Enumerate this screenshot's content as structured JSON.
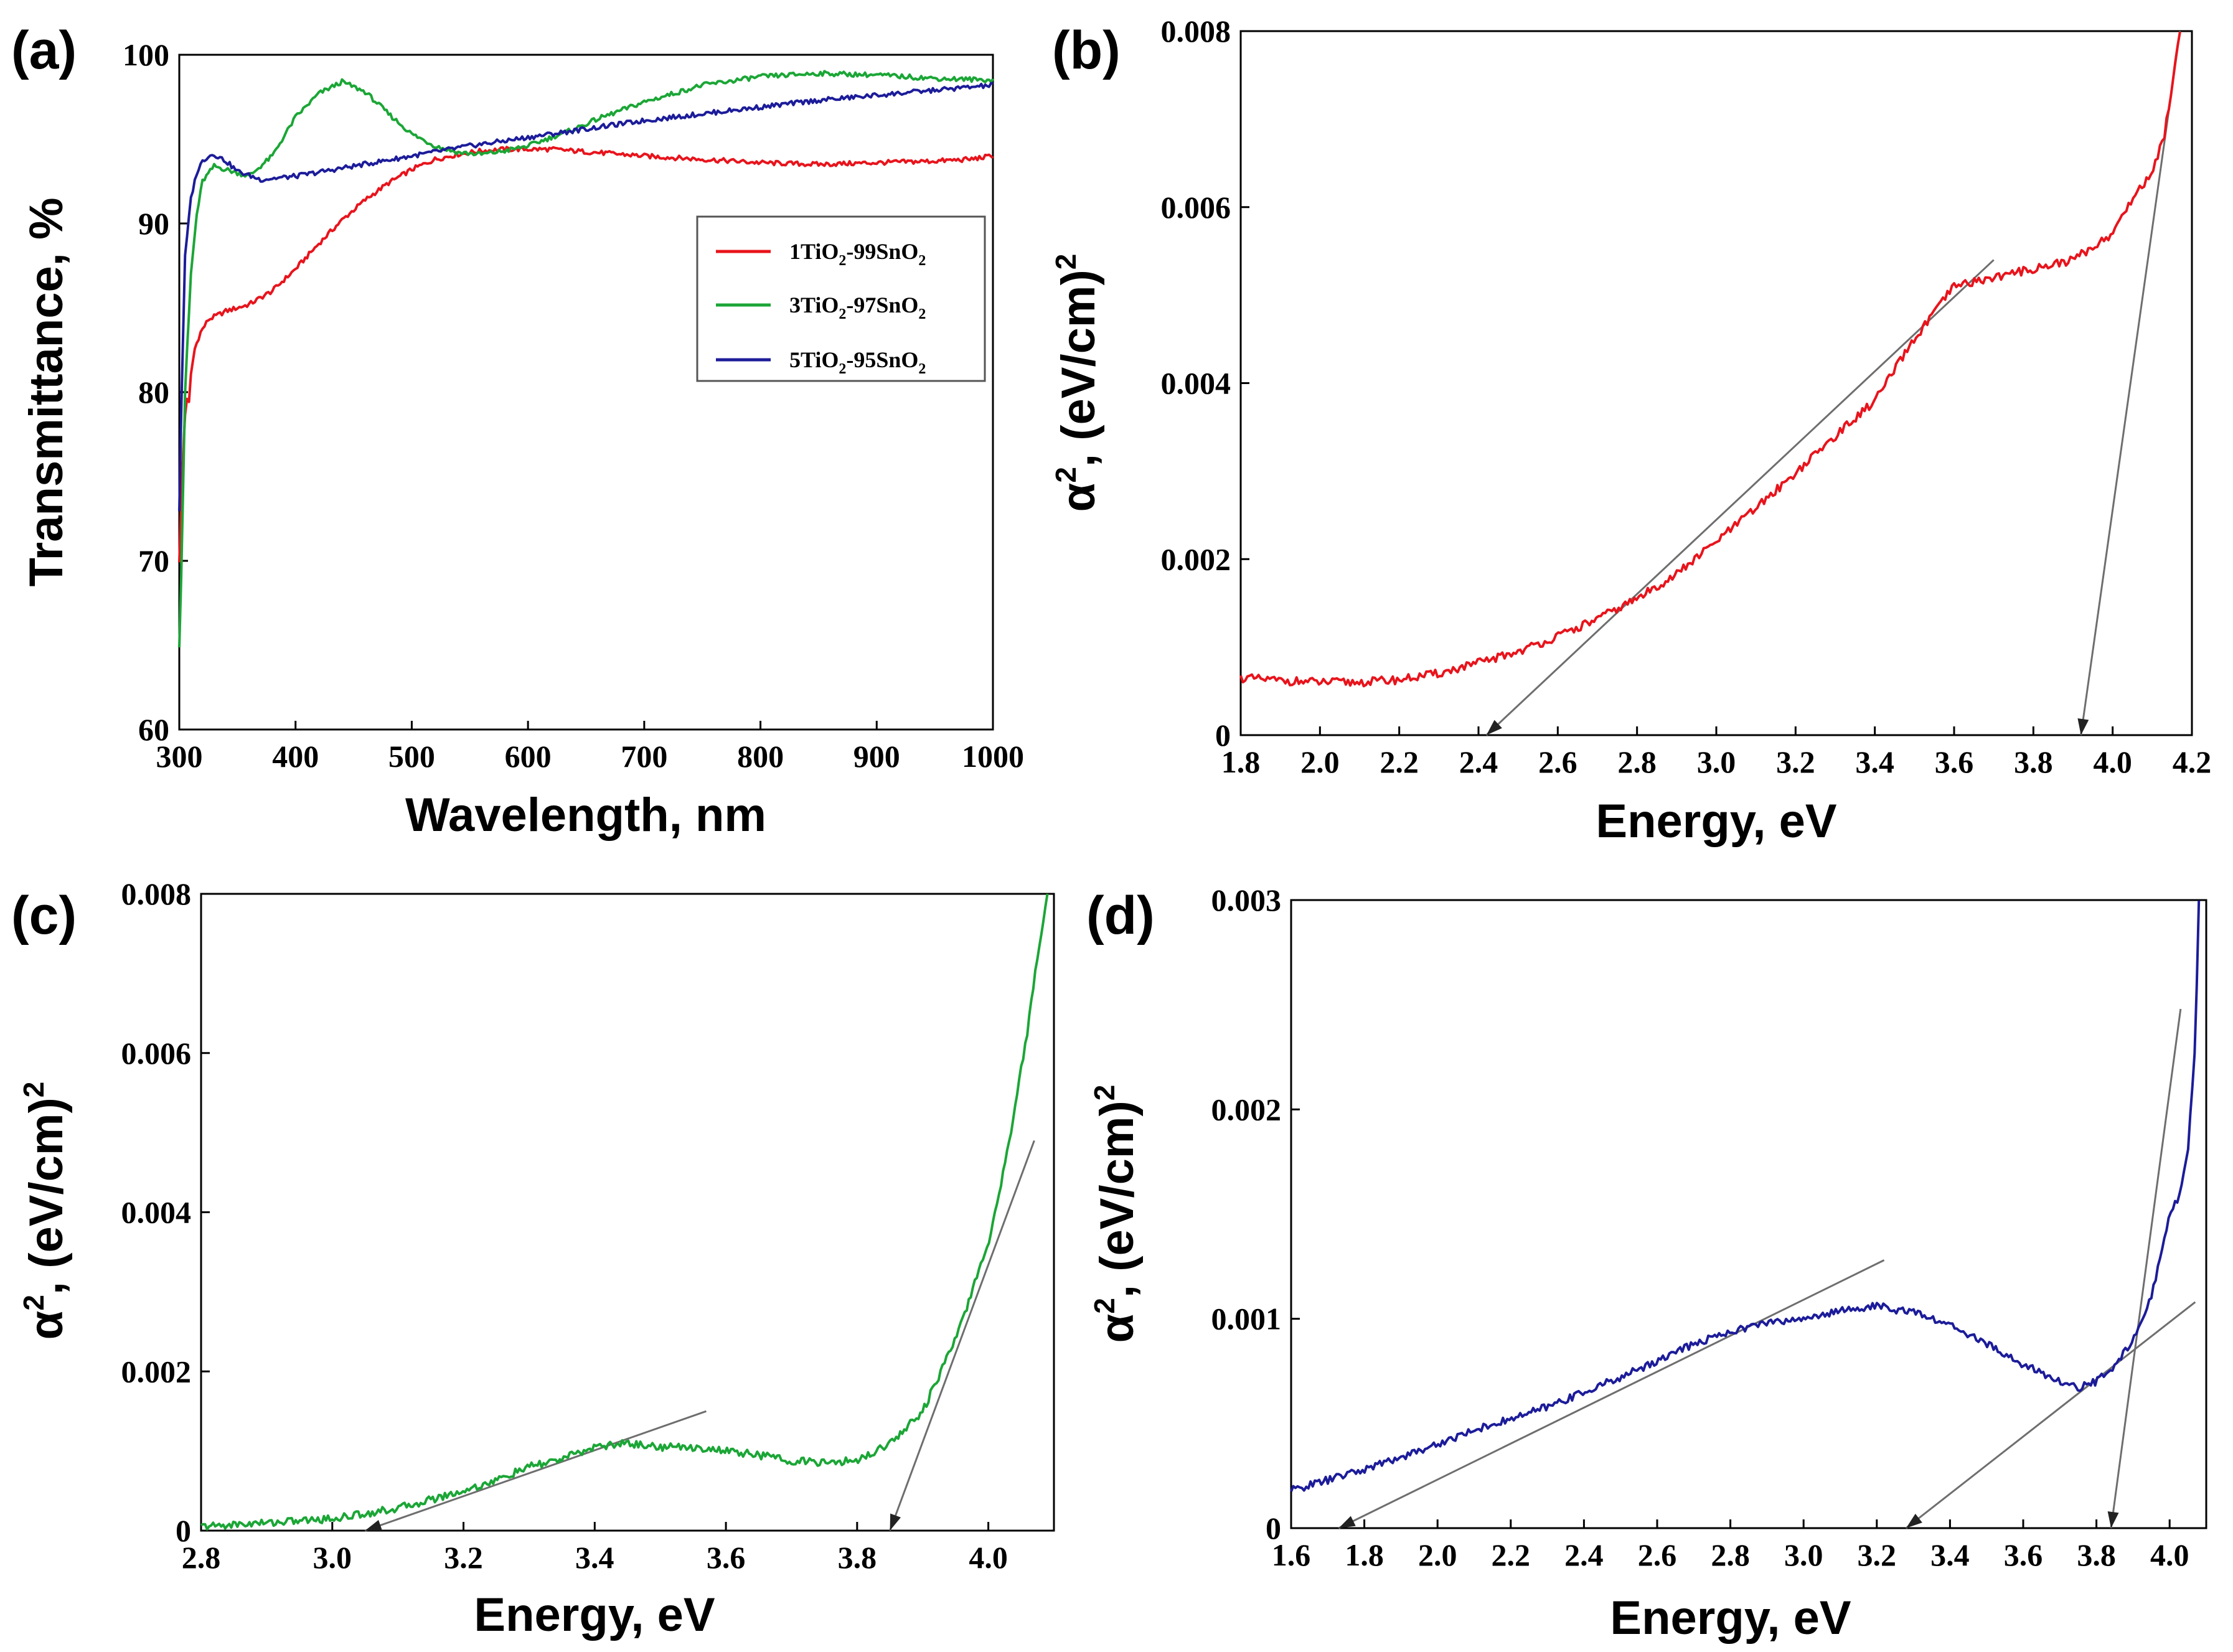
{
  "chart_data": [
    {
      "id": "a",
      "panel_label": "(a)",
      "type": "line",
      "xlabel": "Wavelength, nm",
      "ylabel": "Transmittance, %",
      "xlim": [
        300,
        1000
      ],
      "ylim": [
        60,
        100
      ],
      "xticks": [
        300,
        400,
        500,
        600,
        700,
        800,
        900,
        1000
      ],
      "xtick_labels": [
        "300",
        "400",
        "500",
        "600",
        "700",
        "800",
        "900",
        "1000"
      ],
      "yticks": [
        60,
        70,
        80,
        90,
        100
      ],
      "ytick_labels": [
        "60",
        "70",
        "80",
        "90",
        "100"
      ],
      "legend": {
        "position": "right",
        "entries": [
          {
            "series": "1TiO2-99SnO2",
            "parts": [
              "1TiO",
              "2",
              "-99SnO",
              "2"
            ]
          },
          {
            "series": "3TiO2-97SnO2",
            "parts": [
              "3TiO",
              "2",
              "-97SnO",
              "2"
            ]
          },
          {
            "series": "5TiO2-95SnO2",
            "parts": [
              "5TiO",
              "2",
              "-95SnO",
              "2"
            ]
          }
        ]
      },
      "series": [
        {
          "name": "1TiO2-99SnO2",
          "color": "#e8141c",
          "x": [
            300,
            303,
            306,
            308,
            310,
            313,
            318,
            325,
            340,
            360,
            380,
            400,
            420,
            440,
            460,
            480,
            500,
            520,
            540,
            560,
            580,
            600,
            620,
            640,
            660,
            700,
            750,
            800,
            850,
            900,
            950,
            980,
            1000
          ],
          "y": [
            70,
            76,
            80,
            79,
            81,
            82.5,
            83.5,
            84.3,
            84.8,
            85.2,
            86,
            87.3,
            88.8,
            90.2,
            91.4,
            92.4,
            93.2,
            93.8,
            94.1,
            94.3,
            94.4,
            94.4,
            94.4,
            94.3,
            94.2,
            94,
            93.8,
            93.6,
            93.5,
            93.6,
            93.7,
            93.8,
            94
          ]
        },
        {
          "name": "3TiO2-97SnO2",
          "color": "#1ba636",
          "x": [
            300,
            302,
            305,
            310,
            315,
            320,
            330,
            340,
            360,
            380,
            400,
            420,
            440,
            460,
            480,
            500,
            520,
            540,
            560,
            580,
            600,
            620,
            640,
            660,
            700,
            750,
            800,
            850,
            900,
            950,
            1000
          ],
          "y": [
            65,
            70,
            80,
            87,
            90.5,
            92.5,
            93.4,
            93.2,
            92.8,
            94,
            96.3,
            97.7,
            98.4,
            97.8,
            96.5,
            95.3,
            94.6,
            94.2,
            94.1,
            94.3,
            94.6,
            95.1,
            95.6,
            96.2,
            97.2,
            98.2,
            98.7,
            98.9,
            98.8,
            98.6,
            98.5
          ]
        },
        {
          "name": "5TiO2-95SnO2",
          "color": "#1c1c9a",
          "x": [
            300,
            302,
            305,
            310,
            315,
            320,
            325,
            330,
            340,
            350,
            370,
            400,
            450,
            500,
            550,
            600,
            650,
            700,
            750,
            800,
            850,
            900,
            950,
            1000
          ],
          "y": [
            73,
            80,
            88,
            91.5,
            93,
            93.7,
            94,
            94.1,
            93.7,
            93.1,
            92.6,
            92.8,
            93.4,
            94,
            94.6,
            95.1,
            95.6,
            96.1,
            96.5,
            96.9,
            97.3,
            97.6,
            97.9,
            98.2
          ]
        }
      ]
    },
    {
      "id": "b",
      "panel_label": "(b)",
      "type": "line",
      "xlabel": "Energy, eV",
      "ylabel_main": "α",
      "ylabel_sup": "2",
      "ylabel_rest": ", (eV/cm)",
      "ylabel_sup2": "2",
      "xlim": [
        1.8,
        4.2
      ],
      "ylim": [
        0,
        0.008
      ],
      "xticks": [
        1.8,
        2.0,
        2.2,
        2.4,
        2.6,
        2.8,
        3.0,
        3.2,
        3.4,
        3.6,
        3.8,
        4.0,
        4.2
      ],
      "xtick_labels": [
        "1.8",
        "2.0",
        "2.2",
        "2.4",
        "2.6",
        "2.8",
        "3.0",
        "3.2",
        "3.4",
        "3.6",
        "3.8",
        "4.0",
        "4.2"
      ],
      "yticks": [
        0,
        0.002,
        0.004,
        0.006,
        0.008
      ],
      "ytick_labels": [
        "0",
        "0.002",
        "0.004",
        "0.006",
        "0.008"
      ],
      "series": [
        {
          "name": "1TiO2-99SnO2",
          "color": "#e8141c",
          "x": [
            1.8,
            1.9,
            2.0,
            2.1,
            2.2,
            2.3,
            2.4,
            2.5,
            2.6,
            2.7,
            2.8,
            2.9,
            3.0,
            3.1,
            3.2,
            3.3,
            3.4,
            3.5,
            3.6,
            3.7,
            3.8,
            3.9,
            4.0,
            4.05,
            4.1,
            4.13,
            4.15,
            4.17
          ],
          "y": [
            0.00065,
            0.00062,
            0.0006,
            0.0006,
            0.00063,
            0.0007,
            0.00082,
            0.00095,
            0.00112,
            0.00132,
            0.00155,
            0.00183,
            0.0022,
            0.00258,
            0.00298,
            0.0034,
            0.0038,
            0.0045,
            0.0051,
            0.0052,
            0.0053,
            0.0054,
            0.0057,
            0.0061,
            0.0064,
            0.0068,
            0.0074,
            0.008
          ]
        }
      ],
      "fit_lines": [
        {
          "x": [
            2.42,
            3.7
          ],
          "y": [
            0,
            0.0054
          ],
          "arrow": "start"
        },
        {
          "x": [
            3.92,
            4.17
          ],
          "y": [
            0,
            0.008
          ],
          "arrow": "start"
        }
      ]
    },
    {
      "id": "c",
      "panel_label": "(c)",
      "type": "line",
      "xlabel": "Energy, eV",
      "ylabel_main": "α",
      "ylabel_sup": "2",
      "ylabel_rest": ", (eV/cm)",
      "ylabel_sup2": "2",
      "xlim": [
        2.8,
        4.1
      ],
      "ylim": [
        0,
        0.008
      ],
      "xticks": [
        2.8,
        3.0,
        3.2,
        3.4,
        3.6,
        3.8,
        4.0
      ],
      "xtick_labels": [
        "2.8",
        "3.0",
        "3.2",
        "3.4",
        "3.6",
        "3.8",
        "4.0"
      ],
      "yticks": [
        0,
        0.002,
        0.004,
        0.006,
        0.008
      ],
      "ytick_labels": [
        "0",
        "0.002",
        "0.004",
        "0.006",
        "0.008"
      ],
      "series": [
        {
          "name": "3TiO2-97SnO2",
          "color": "#1ba636",
          "x": [
            2.8,
            2.9,
            3.0,
            3.1,
            3.2,
            3.25,
            3.3,
            3.35,
            3.4,
            3.45,
            3.5,
            3.55,
            3.6,
            3.65,
            3.7,
            3.75,
            3.8,
            3.85,
            3.9,
            3.95,
            4.0,
            4.03,
            4.06,
            4.08,
            4.09
          ],
          "y": [
            5e-05,
            0.0001,
            0.00015,
            0.00028,
            0.0005,
            0.00063,
            0.0008,
            0.0009,
            0.00105,
            0.0011,
            0.00105,
            0.00105,
            0.001,
            0.00095,
            0.00088,
            0.00085,
            0.00088,
            0.0011,
            0.0015,
            0.0024,
            0.0036,
            0.0048,
            0.0063,
            0.0075,
            0.008
          ]
        }
      ],
      "fit_lines": [
        {
          "x": [
            3.05,
            3.57
          ],
          "y": [
            0,
            0.0015
          ],
          "arrow": "start"
        },
        {
          "x": [
            3.85,
            4.07
          ],
          "y": [
            0,
            0.0049
          ],
          "arrow": "start"
        }
      ]
    },
    {
      "id": "d",
      "panel_label": "(d)",
      "type": "line",
      "xlabel": "Energy, eV",
      "ylabel_main": "α",
      "ylabel_sup": "2",
      "ylabel_rest": ", (eV/cm)",
      "ylabel_sup2": "2",
      "xlim": [
        1.6,
        4.1
      ],
      "ylim": [
        0,
        0.003
      ],
      "xticks": [
        1.6,
        1.8,
        2.0,
        2.2,
        2.4,
        2.6,
        2.8,
        3.0,
        3.2,
        3.4,
        3.6,
        3.8,
        4.0
      ],
      "xtick_labels": [
        "1.6",
        "1.8",
        "2.0",
        "2.2",
        "2.4",
        "2.6",
        "2.8",
        "3.0",
        "3.2",
        "3.4",
        "3.6",
        "3.8",
        "4.0"
      ],
      "yticks": [
        0,
        0.001,
        0.002,
        0.003
      ],
      "ytick_labels": [
        "0",
        "0.001",
        "0.002",
        "0.003"
      ],
      "series": [
        {
          "name": "5TiO2-95SnO2",
          "color": "#1c1c9a",
          "x": [
            1.6,
            1.7,
            1.8,
            1.9,
            2.0,
            2.1,
            2.2,
            2.3,
            2.4,
            2.5,
            2.6,
            2.7,
            2.8,
            2.9,
            3.0,
            3.1,
            3.2,
            3.3,
            3.4,
            3.5,
            3.6,
            3.7,
            3.75,
            3.8,
            3.85,
            3.9,
            3.95,
            4.0,
            4.03,
            4.05,
            4.07,
            4.08
          ],
          "y": [
            0.00018,
            0.00023,
            0.00028,
            0.00034,
            0.0004,
            0.00047,
            0.00052,
            0.00058,
            0.00065,
            0.00072,
            0.0008,
            0.00088,
            0.00094,
            0.00098,
            0.001,
            0.00104,
            0.00106,
            0.00103,
            0.00097,
            0.00088,
            0.00078,
            0.0007,
            0.00067,
            0.0007,
            0.00078,
            0.0009,
            0.0011,
            0.0015,
            0.0016,
            0.0018,
            0.0023,
            0.003
          ]
        }
      ],
      "fit_lines": [
        {
          "x": [
            1.73,
            3.22
          ],
          "y": [
            0,
            0.00128
          ],
          "arrow": "start"
        },
        {
          "x": [
            3.28,
            4.07
          ],
          "y": [
            0,
            0.00108
          ],
          "arrow": "start"
        },
        {
          "x": [
            3.84,
            4.03
          ],
          "y": [
            0,
            0.00248
          ],
          "arrow": "start"
        }
      ]
    }
  ]
}
